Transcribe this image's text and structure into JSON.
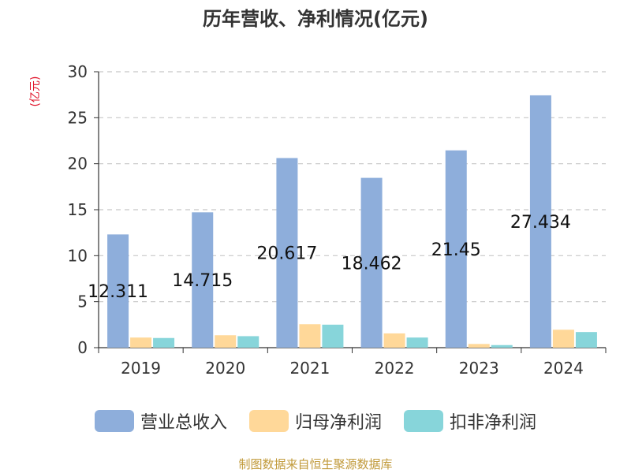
{
  "chart_data": {
    "type": "bar",
    "title": "历年营收、净利情况(亿元)",
    "ylabel": "(亿元)",
    "xlabel": "",
    "ylim": [
      0,
      30
    ],
    "yticks": [
      0,
      5,
      10,
      15,
      20,
      25,
      30
    ],
    "grid": true,
    "legend_position": "bottom",
    "categories": [
      "2019",
      "2020",
      "2021",
      "2022",
      "2023",
      "2024"
    ],
    "series": [
      {
        "name": "营业总收入",
        "color": "#8eaedb",
        "values": [
          12.311,
          14.715,
          20.617,
          18.462,
          21.45,
          27.434
        ],
        "data_labels": [
          "12.311",
          "14.715",
          "20.617",
          "18.462",
          "21.45",
          "27.434"
        ]
      },
      {
        "name": "归母净利润",
        "color": "#ffd899",
        "values": [
          1.1,
          1.35,
          2.55,
          1.55,
          0.4,
          1.95
        ]
      },
      {
        "name": "扣非净利润",
        "color": "#87d5da",
        "values": [
          1.05,
          1.25,
          2.5,
          1.1,
          0.28,
          1.7
        ]
      }
    ],
    "source": "制图数据来自恒生聚源数据库"
  }
}
